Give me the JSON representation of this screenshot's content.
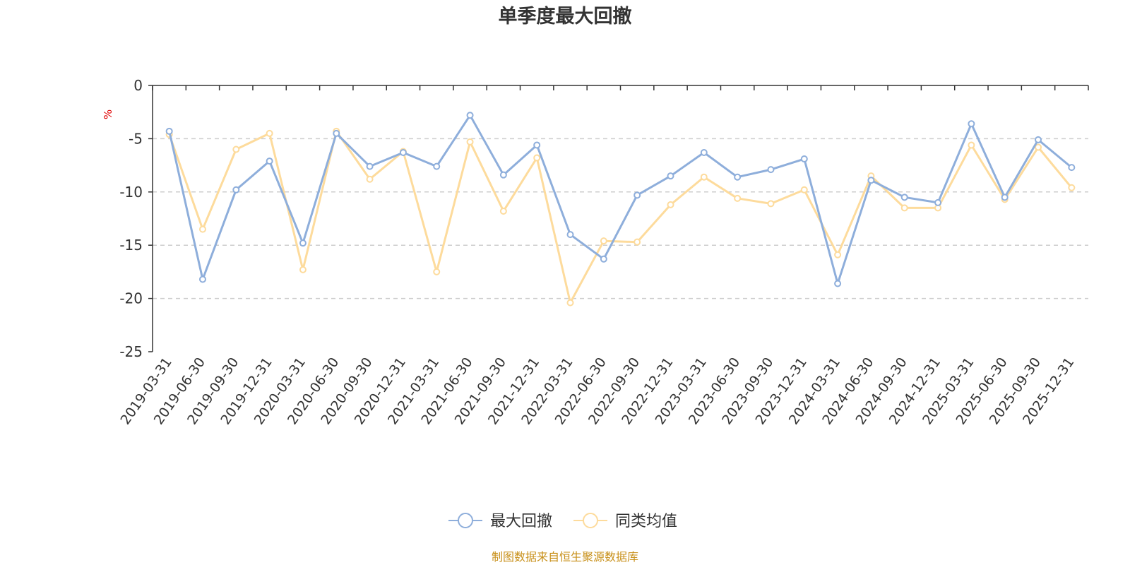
{
  "chart_data": {
    "type": "line",
    "title": "单季度最大回撤",
    "ylabel": "%",
    "ylim": [
      -25,
      0
    ],
    "yticks": [
      0,
      -5,
      -10,
      -15,
      -20,
      -25
    ],
    "grid": "horizontal dashed",
    "legend_position": "bottom-center",
    "categories": [
      "2019-03-31",
      "2019-06-30",
      "2019-09-30",
      "2019-12-31",
      "2020-03-31",
      "2020-06-30",
      "2020-09-30",
      "2020-12-31",
      "2021-03-31",
      "2021-06-30",
      "2021-09-30",
      "2021-12-31",
      "2022-03-31",
      "2022-06-30",
      "2022-09-30",
      "2022-12-31",
      "2023-03-31",
      "2023-06-30",
      "2023-09-30",
      "2023-12-31",
      "2024-03-31",
      "2024-06-30",
      "2024-09-30",
      "2024-12-31",
      "2025-03-31",
      "2025-06-30",
      "2025-09-30",
      "2025-12-31"
    ],
    "series": [
      {
        "name": "最大回撤",
        "color": "#8eaedb",
        "values": [
          -4.3,
          -18.2,
          -9.8,
          -7.1,
          -14.8,
          -4.5,
          -7.6,
          -6.3,
          -7.6,
          -2.8,
          -8.4,
          -5.6,
          -14.0,
          -16.3,
          -10.3,
          -8.5,
          -6.3,
          -8.6,
          -7.9,
          -6.9,
          -18.6,
          -8.9,
          -10.5,
          -11.0,
          -3.6,
          -10.5,
          -5.1,
          -7.7
        ]
      },
      {
        "name": "同类均值",
        "color": "#fddb9c",
        "values": [
          -4.6,
          -13.5,
          -6.0,
          -4.5,
          -17.3,
          -4.3,
          -8.8,
          -6.2,
          -17.5,
          -5.3,
          -11.8,
          -6.8,
          -20.4,
          -14.6,
          -14.7,
          -11.2,
          -8.6,
          -10.6,
          -11.1,
          -9.8,
          -15.9,
          -8.5,
          -11.5,
          -11.5,
          -5.6,
          -10.7,
          -5.8,
          -9.6
        ]
      }
    ],
    "source_note": "制图数据来自恒生聚源数据库"
  }
}
